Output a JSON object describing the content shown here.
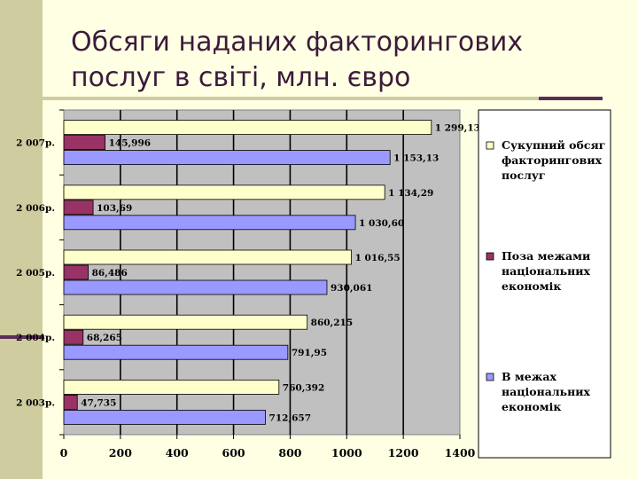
{
  "slide": {
    "title": "Обсяги наданих факторингових послуг в світі, млн. євро"
  },
  "colors": {
    "background": "#ffffe3",
    "plot_area": "#c0c0c0",
    "total": "#ffffcc",
    "outside": "#993366",
    "inside": "#9999ff",
    "accent": "#5a2d5a"
  },
  "chart_data": {
    "type": "bar",
    "orientation": "horizontal",
    "categories": [
      "2 003р.",
      "2 004р.",
      "2 005р.",
      "2 006р.",
      "2 007р."
    ],
    "series": [
      {
        "name": "Сукупний обсяг факторингових послуг",
        "values": [
          760.392,
          860.215,
          1016.55,
          1134.29,
          1299.13
        ],
        "labels": [
          "760,392",
          "860,215",
          "1 016,55",
          "1 134,29",
          "1 299,13"
        ],
        "color": "#ffffcc"
      },
      {
        "name": "Поза межами національних економік",
        "values": [
          47.735,
          68.265,
          86.486,
          103.69,
          145.996
        ],
        "labels": [
          "47,735",
          "68,265",
          "86,486",
          "103,69",
          "145,996"
        ],
        "color": "#993366"
      },
      {
        "name": "В межах національних економік",
        "values": [
          712.657,
          791.95,
          930.061,
          1030.6,
          1153.13
        ],
        "labels": [
          "712,657",
          "791,95",
          "930,061",
          "1 030,60",
          "1 153,13"
        ],
        "color": "#9999ff"
      }
    ],
    "legend_items": [
      {
        "lines": [
          "Сукупний обсяг",
          "факторингових",
          "послуг"
        ]
      },
      {
        "lines": [
          "Поза межами",
          "національних",
          "економік"
        ]
      },
      {
        "lines": [
          "В межах",
          "національних",
          "економік"
        ]
      }
    ],
    "xticks": [
      "0",
      "200",
      "400",
      "600",
      "800",
      "1000",
      "1200",
      "1400"
    ],
    "xlim": [
      0,
      1400
    ],
    "grid": true,
    "legend": "right"
  }
}
